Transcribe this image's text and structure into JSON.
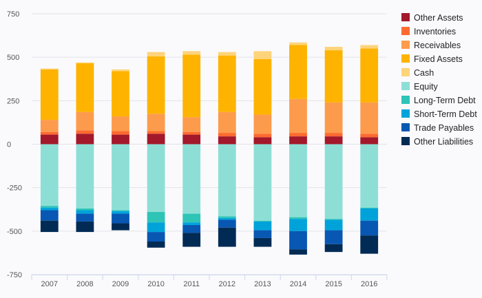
{
  "chart_data": {
    "type": "bar",
    "stacked": true,
    "title": "",
    "xlabel": "",
    "ylabel": "",
    "ylim": [
      -750,
      750
    ],
    "yticks": [
      750,
      500,
      250,
      0,
      -250,
      -500,
      -750
    ],
    "grid": true,
    "legend_position": "right",
    "categories": [
      "2007",
      "2008",
      "2009",
      "2010",
      "2011",
      "2012",
      "2013",
      "2014",
      "2015",
      "2016"
    ],
    "series": [
      {
        "name": "Other Assets",
        "color": "#a3182a",
        "values": [
          55,
          60,
          55,
          60,
          55,
          45,
          40,
          45,
          45,
          40
        ]
      },
      {
        "name": "Inventories",
        "color": "#fd6a30",
        "values": [
          15,
          20,
          20,
          15,
          15,
          20,
          20,
          20,
          20,
          20
        ]
      },
      {
        "name": "Receivables",
        "color": "#fd9b4c",
        "values": [
          70,
          105,
          85,
          100,
          85,
          120,
          110,
          195,
          175,
          180
        ]
      },
      {
        "name": "Fixed Assets",
        "color": "#fdb300",
        "values": [
          290,
          280,
          260,
          330,
          360,
          325,
          320,
          310,
          300,
          310
        ]
      },
      {
        "name": "Cash",
        "color": "#fed47b",
        "values": [
          5,
          5,
          10,
          25,
          20,
          20,
          45,
          15,
          20,
          20
        ]
      },
      {
        "name": "Equity",
        "color": "#8ddfd6",
        "values": [
          -355,
          -370,
          -380,
          -390,
          -400,
          -415,
          -440,
          -420,
          -430,
          -365
        ]
      },
      {
        "name": "Long-Term Debt",
        "color": "#2ec4b6",
        "values": [
          -10,
          -10,
          -5,
          -60,
          -50,
          -10,
          -5,
          -10,
          -5,
          -5
        ]
      },
      {
        "name": "Short-Term Debt",
        "color": "#00a3d9",
        "values": [
          -15,
          -20,
          -15,
          -55,
          -15,
          -10,
          -50,
          -70,
          -60,
          -70
        ]
      },
      {
        "name": "Trade Payables",
        "color": "#0857b3",
        "values": [
          -60,
          -45,
          -55,
          -55,
          -45,
          -45,
          -45,
          -105,
          -80,
          -85
        ]
      },
      {
        "name": "Other Liabilities",
        "color": "#012b55",
        "values": [
          -65,
          -60,
          -40,
          -35,
          -80,
          -110,
          -50,
          -30,
          -45,
          -105
        ]
      }
    ]
  }
}
